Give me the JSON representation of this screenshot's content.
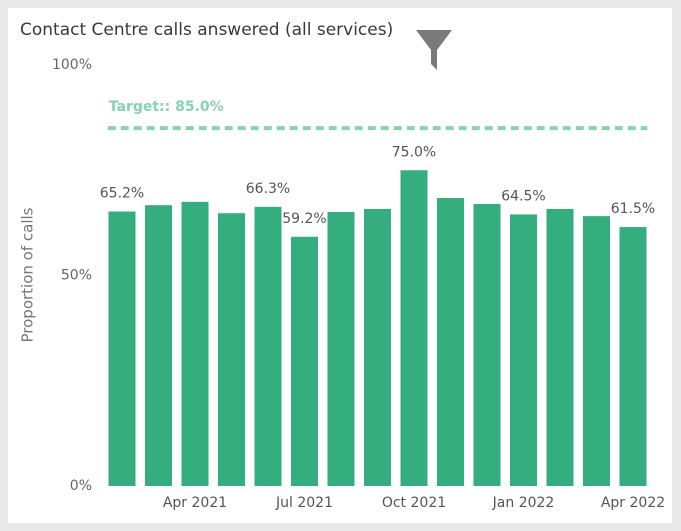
{
  "chart_data": {
    "type": "bar",
    "title": "Contact Centre calls answered (all services)",
    "y_label": "Proportion of calls",
    "categories": [
      null,
      null,
      "Apr 2021",
      null,
      null,
      "Jul 2021",
      null,
      null,
      "Oct 2021",
      null,
      null,
      "Jan 2022",
      null,
      null,
      "Apr 2022"
    ],
    "values": [
      65.2,
      66.7,
      67.5,
      64.8,
      66.3,
      59.2,
      65.1,
      65.8,
      75.0,
      68.4,
      67.0,
      64.5,
      65.8,
      64.1,
      61.5
    ],
    "value_labels": [
      "65.2%",
      null,
      null,
      null,
      "66.3%",
      "59.2%",
      null,
      null,
      "75.0%",
      null,
      null,
      "64.5%",
      null,
      null,
      "61.5%"
    ],
    "color": "#34ae7f",
    "ylim": [
      0,
      100
    ],
    "yticks": [
      {
        "value": 0,
        "label": "0%"
      },
      {
        "value": 50,
        "label": "50%"
      },
      {
        "value": 100,
        "label": "100%"
      }
    ],
    "target": {
      "label": "Target:: 85.0%",
      "value": 85,
      "color": "#86d3ae"
    }
  }
}
